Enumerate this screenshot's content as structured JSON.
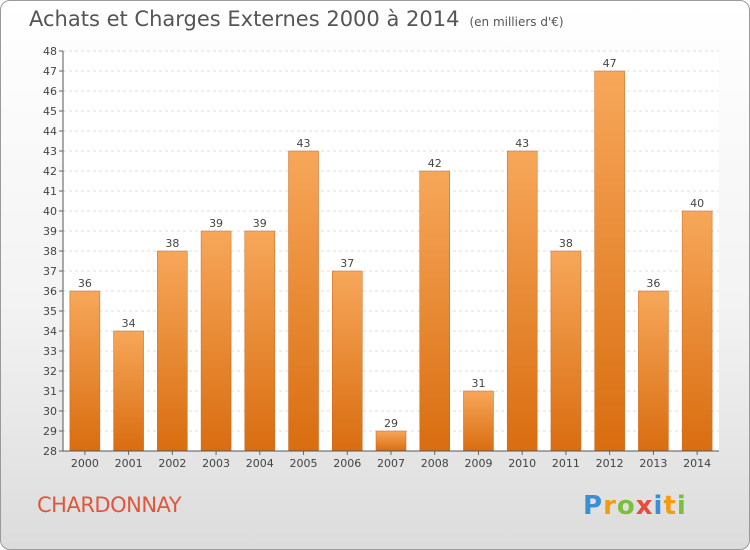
{
  "title": "Achats et Charges Externes 2000 à 2014",
  "unit": "(en milliers d'€)",
  "commune": "CHARDONNAY",
  "logo": {
    "letters": [
      "P",
      "r",
      "o",
      "x",
      "i",
      "t",
      "i"
    ],
    "colors": [
      "#3a8fd6",
      "#f39c12",
      "#7cbf3a",
      "#e74c3c",
      "#3a8fd6",
      "#f39c12",
      "#7cbf3a"
    ]
  },
  "chart_data": {
    "type": "bar",
    "categories": [
      "2000",
      "2001",
      "2002",
      "2003",
      "2004",
      "2005",
      "2006",
      "2007",
      "2008",
      "2009",
      "2010",
      "2011",
      "2012",
      "2013",
      "2014"
    ],
    "values": [
      36,
      34,
      38,
      39,
      39,
      43,
      37,
      29,
      42,
      31,
      43,
      38,
      47,
      36,
      40
    ],
    "ylim": [
      28,
      48
    ],
    "yticks": [
      28,
      29,
      30,
      31,
      32,
      33,
      34,
      35,
      36,
      37,
      38,
      39,
      40,
      41,
      42,
      43,
      44,
      45,
      46,
      47,
      48
    ],
    "grid": true,
    "bar_color": "#f08a2c"
  }
}
